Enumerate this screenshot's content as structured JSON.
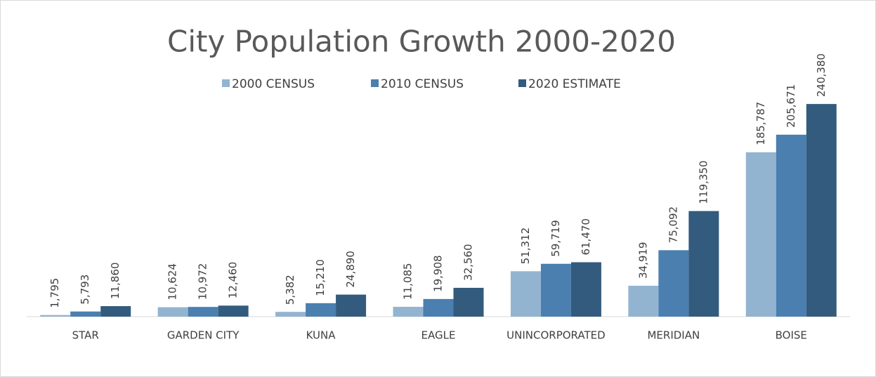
{
  "chart_data": {
    "type": "bar",
    "title": "City Population Growth 2000-2020",
    "categories": [
      "STAR",
      "GARDEN CITY",
      "KUNA",
      "EAGLE",
      "UNINCORPORATED",
      "MERIDIAN",
      "BOISE"
    ],
    "series": [
      {
        "name": "2000 CENSUS",
        "color": "#93b4d1",
        "values": [
          1795,
          10624,
          5382,
          11085,
          51312,
          34919,
          185787
        ],
        "value_labels": [
          "1,795",
          "10,624",
          "5,382",
          "11,085",
          "51,312",
          "34,919",
          "185,787"
        ]
      },
      {
        "name": "2010 CENSUS",
        "color": "#4a7fb0",
        "values": [
          5793,
          10972,
          15210,
          19908,
          59719,
          75092,
          205671
        ],
        "value_labels": [
          "5,793",
          "10,972",
          "15,210",
          "19,908",
          "59,719",
          "75,092",
          "205,671"
        ]
      },
      {
        "name": "2020 ESTIMATE",
        "color": "#335b7d",
        "values": [
          11860,
          12460,
          24890,
          32560,
          61470,
          119350,
          240380
        ],
        "value_labels": [
          "11,860",
          "12,460",
          "24,890",
          "32,560",
          "61,470",
          "119,350",
          "240,380"
        ]
      }
    ],
    "ylim": [
      0,
      250000
    ],
    "legend": "top"
  }
}
